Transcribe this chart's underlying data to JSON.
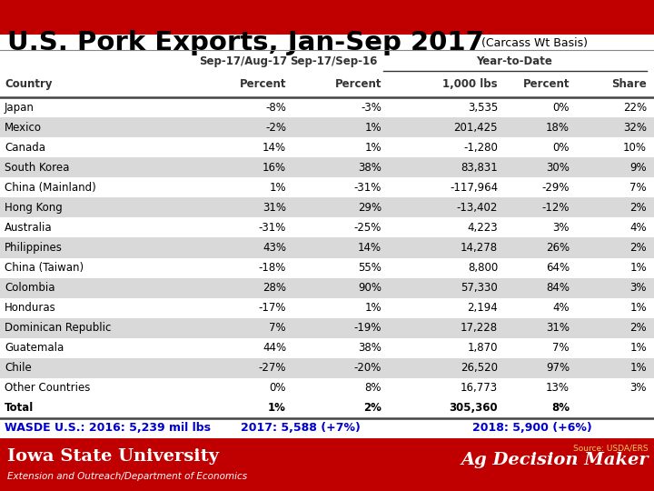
{
  "title": "U.S. Pork Exports, Jan-Sep 2017",
  "subtitle": "(Carcass Wt Basis)",
  "col_headers_row2": [
    "Country",
    "Percent",
    "Percent",
    "1,000 lbs",
    "Percent",
    "Share"
  ],
  "rows": [
    [
      "Japan",
      "-8%",
      "-3%",
      "3,535",
      "0%",
      "22%"
    ],
    [
      "Mexico",
      "-2%",
      "1%",
      "201,425",
      "18%",
      "32%"
    ],
    [
      "Canada",
      "14%",
      "1%",
      "-1,280",
      "0%",
      "10%"
    ],
    [
      "South Korea",
      "16%",
      "38%",
      "83,831",
      "30%",
      "9%"
    ],
    [
      "China (Mainland)",
      "1%",
      "-31%",
      "-117,964",
      "-29%",
      "7%"
    ],
    [
      "Hong Kong",
      "31%",
      "29%",
      "-13,402",
      "-12%",
      "2%"
    ],
    [
      "Australia",
      "-31%",
      "-25%",
      "4,223",
      "3%",
      "4%"
    ],
    [
      "Philippines",
      "43%",
      "14%",
      "14,278",
      "26%",
      "2%"
    ],
    [
      "China (Taiwan)",
      "-18%",
      "55%",
      "8,800",
      "64%",
      "1%"
    ],
    [
      "Colombia",
      "28%",
      "90%",
      "57,330",
      "84%",
      "3%"
    ],
    [
      "Honduras",
      "-17%",
      "1%",
      "2,194",
      "4%",
      "1%"
    ],
    [
      "Dominican Republic",
      "7%",
      "-19%",
      "17,228",
      "31%",
      "2%"
    ],
    [
      "Guatemala",
      "44%",
      "38%",
      "1,870",
      "7%",
      "1%"
    ],
    [
      "Chile",
      "-27%",
      "-20%",
      "26,520",
      "97%",
      "1%"
    ],
    [
      "Other Countries",
      "0%",
      "8%",
      "16,773",
      "13%",
      "3%"
    ],
    [
      "Total",
      "1%",
      "2%",
      "305,360",
      "8%",
      ""
    ]
  ],
  "footer_parts": [
    "WASDE U.S.: 2016: 5,239 mil lbs",
    "2017: 5,588 (+7%)",
    "2018: 5,900 (+6%)"
  ],
  "iowa_sub": "Extension and Outreach/Department of Economics",
  "ag_text": "Ag Decision Maker",
  "source_text": "Source: USDA/ERS",
  "title_red": "#c00000",
  "row_alt_color": "#d9d9d9",
  "row_white": "#ffffff",
  "footer_blue": "#0000cc",
  "iowa_red": "#c00000",
  "iowa_white": "#ffffff",
  "iowa_yellow": "#f0d060"
}
